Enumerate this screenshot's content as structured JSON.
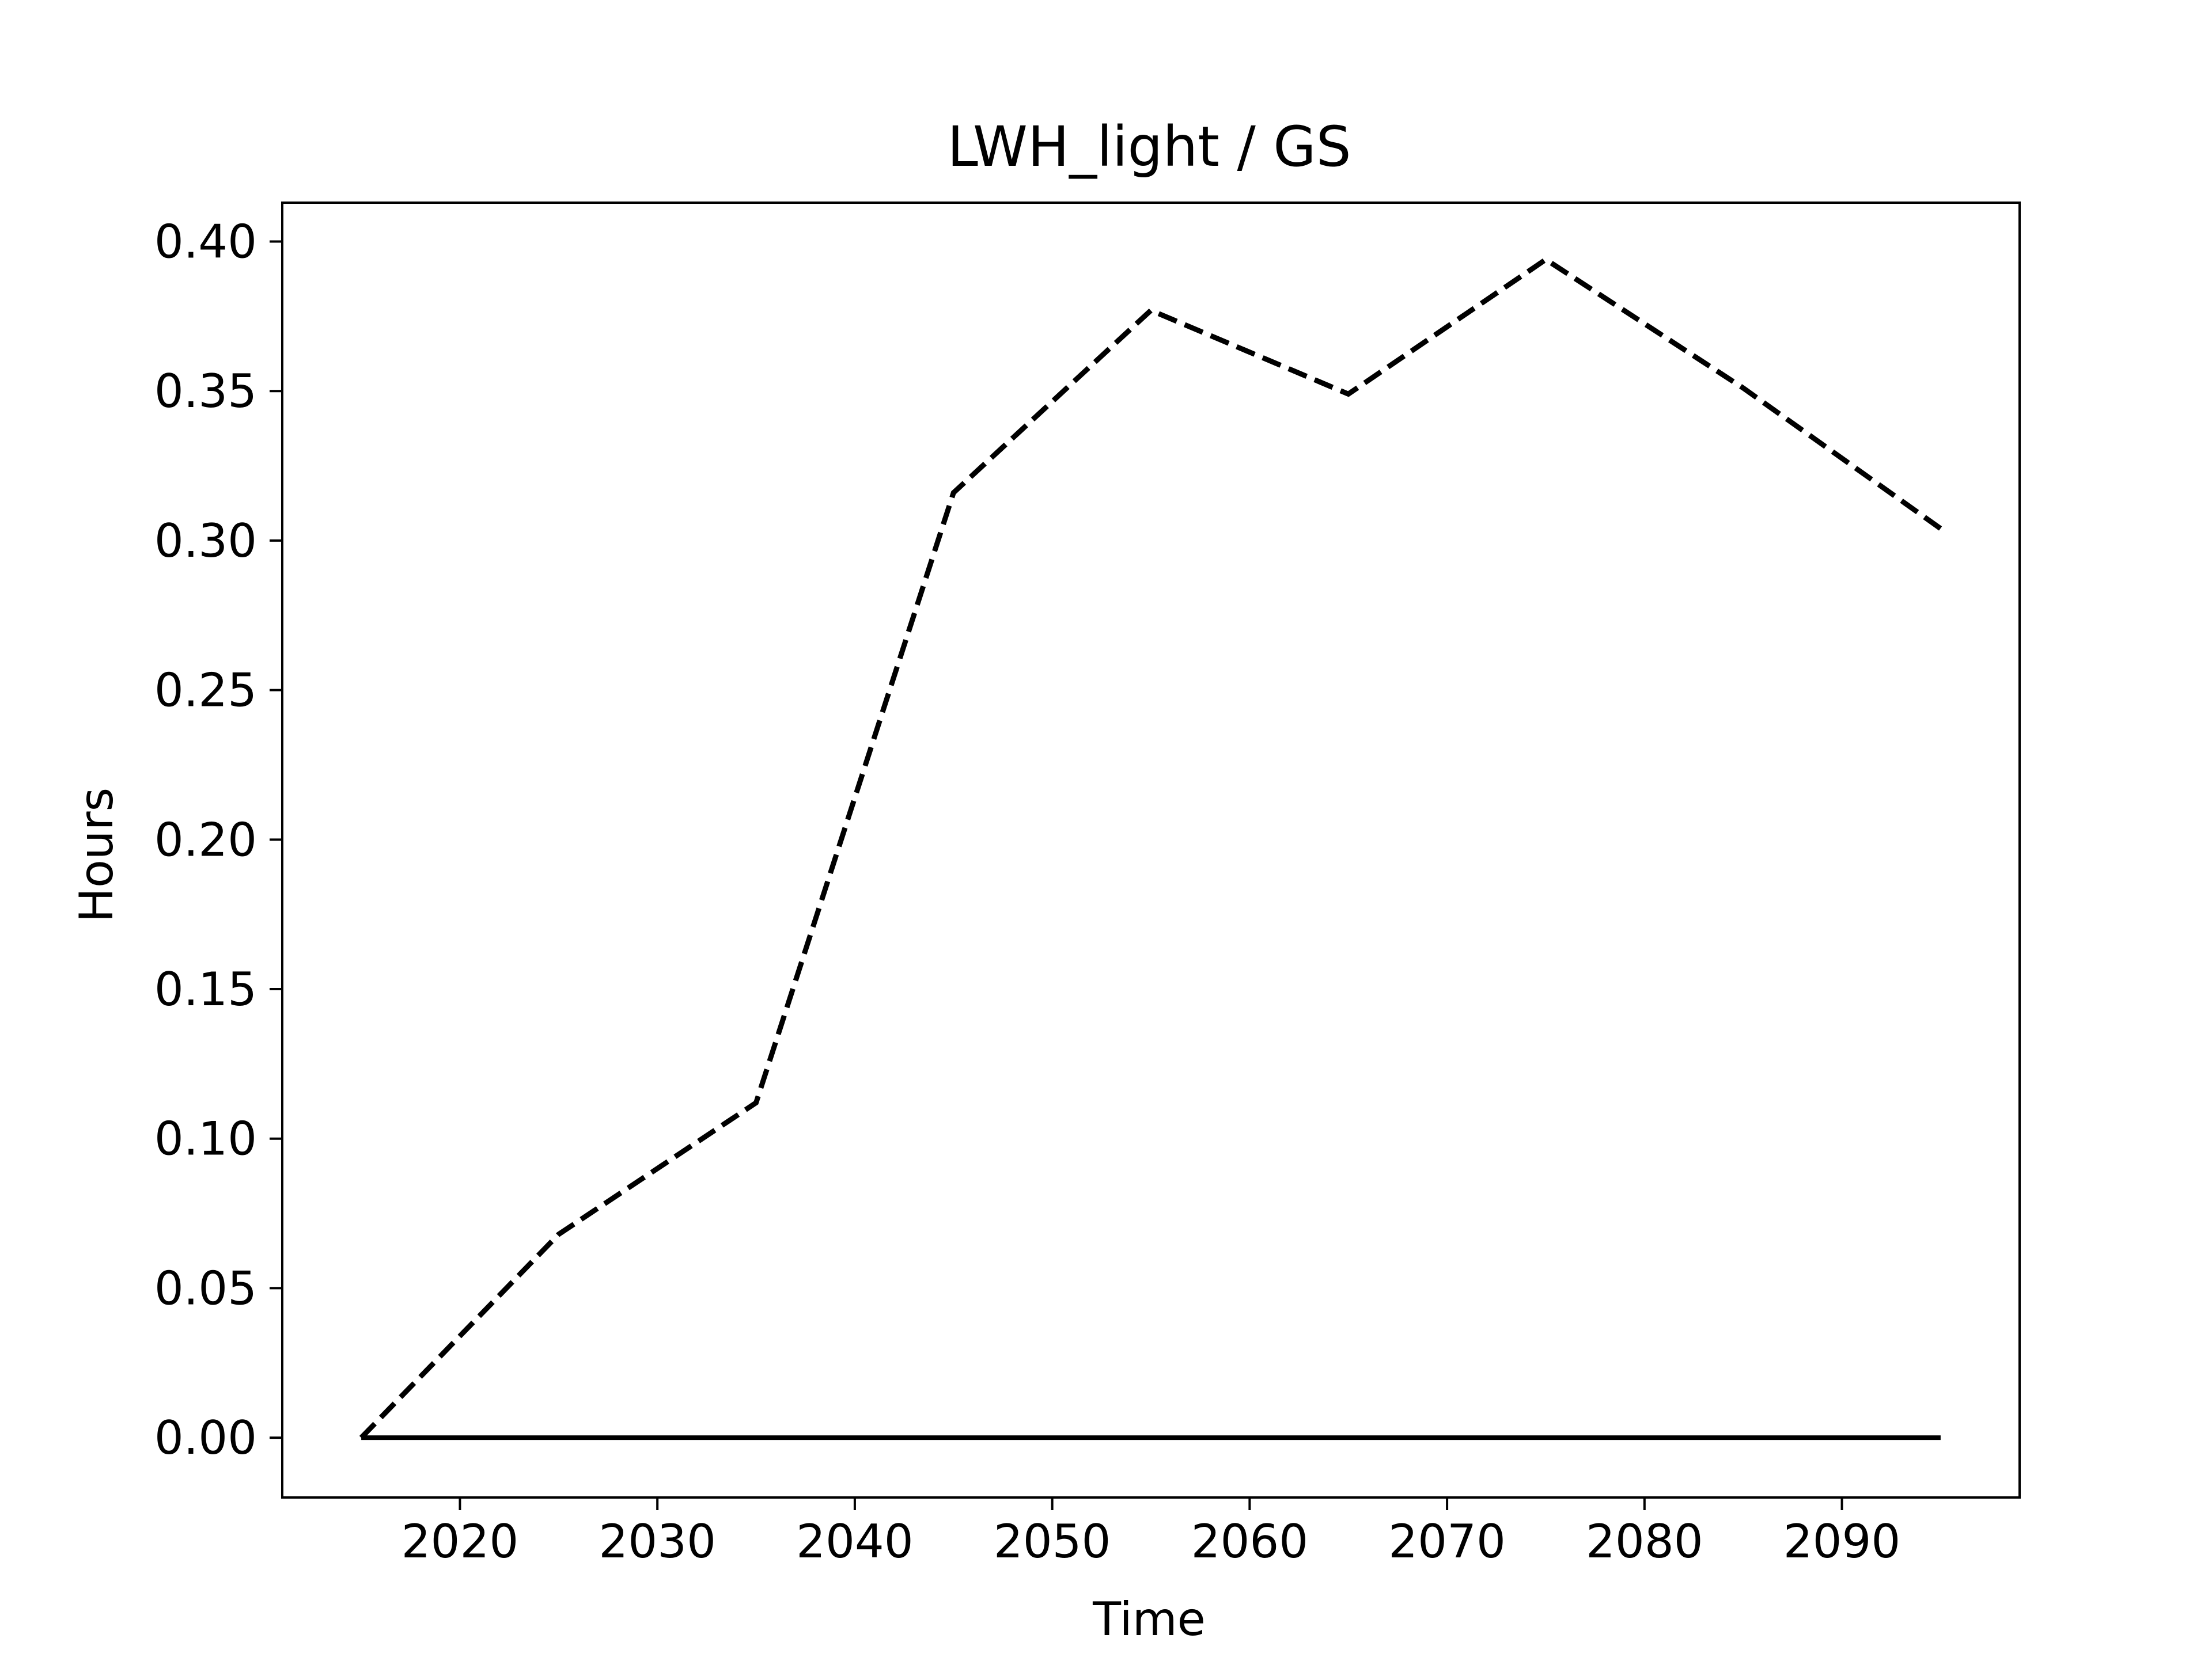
{
  "chart_data": {
    "type": "line",
    "title": "LWH_light / GS",
    "xlabel": "Time",
    "ylabel": "Hours",
    "x": [
      2015,
      2025,
      2035,
      2045,
      2055,
      2065,
      2075,
      2085,
      2095
    ],
    "series": [
      {
        "style": "dashed",
        "color": "#000000",
        "values": [
          0.0,
          0.068,
          0.112,
          0.316,
          0.377,
          0.349,
          0.394,
          0.351,
          0.304
        ]
      },
      {
        "style": "solid",
        "color": "#000000",
        "values": [
          0.0,
          0.0,
          0.0,
          0.0,
          0.0,
          0.0,
          0.0,
          0.0,
          0.0
        ]
      }
    ],
    "xlim": [
      2011,
      2099
    ],
    "ylim": [
      -0.02,
      0.413
    ],
    "xticks": [
      "2020",
      "2030",
      "2040",
      "2050",
      "2060",
      "2070",
      "2080",
      "2090"
    ],
    "yticks": [
      "0.00",
      "0.05",
      "0.10",
      "0.15",
      "0.20",
      "0.25",
      "0.30",
      "0.35",
      "0.40"
    ],
    "grid": false,
    "legend": "none"
  }
}
